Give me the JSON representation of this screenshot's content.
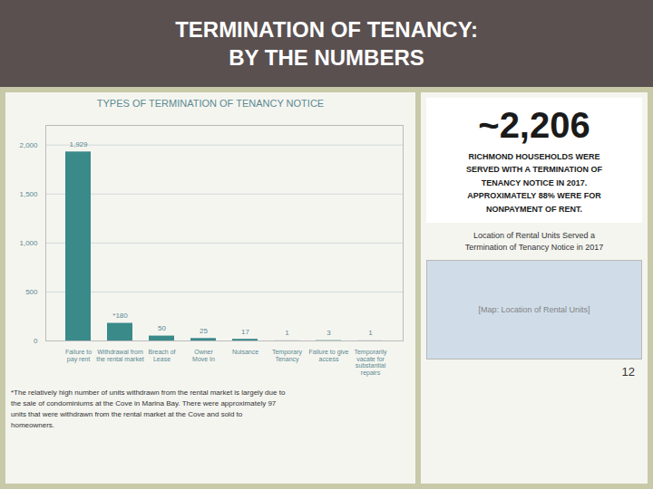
{
  "title": "TERMINATION OF TENANCY:\nBY THE NUMBERS",
  "chart_data": {
    "type": "bar",
    "title": "TYPES OF TERMINATION OF TENANCY NOTICE",
    "categories": [
      "Failure to\npay rent",
      "Withdrawal from\nthe rental market",
      "Breach of\nLease",
      "Owner\nMove In",
      "Nuisance",
      "Temporary\nTenancy",
      "Failure to give\naccess",
      "Temporarily\nvacate for\nsubstantial\nrepairs"
    ],
    "values": [
      1929,
      180,
      50,
      25,
      17,
      1,
      3,
      1
    ],
    "value_labels": [
      "1,929",
      "*180",
      "50",
      "25",
      "17",
      "1",
      "3",
      "1"
    ],
    "data_labels": true,
    "color": "#3a8a8a",
    "ylim": [
      0,
      2200
    ],
    "yticks": [
      0,
      500,
      {
        "value": 1000,
        "label": "1,000"
      },
      {
        "value": 1500,
        "label": "1,500"
      },
      {
        "value": 2000,
        "label": "2,000"
      }
    ],
    "grid": true
  },
  "annotations": [
    "~2,206",
    "RICHMOND HOUSEHOLDS WERE\nSERVED WITH A TERMINATION OF\nTENANCY NOTICE IN 2017.\nAPPROXIMATELY 88% WERE FOR\nNONPAYMENT OF RENT.",
    "Location of Rental Units Served a\nTermination of Tenancy Notice in 2017",
    "[Map: Location of Rental Units]",
    "*The relatively high number of units withdrawn from the rental market is largely due to\nthe sale of condominiums at the Cove in Marina Bay. There were approximately 97\nunits that were withdrawn from the rental market at the Cove and sold to\nhomeowners.",
    "12"
  ]
}
